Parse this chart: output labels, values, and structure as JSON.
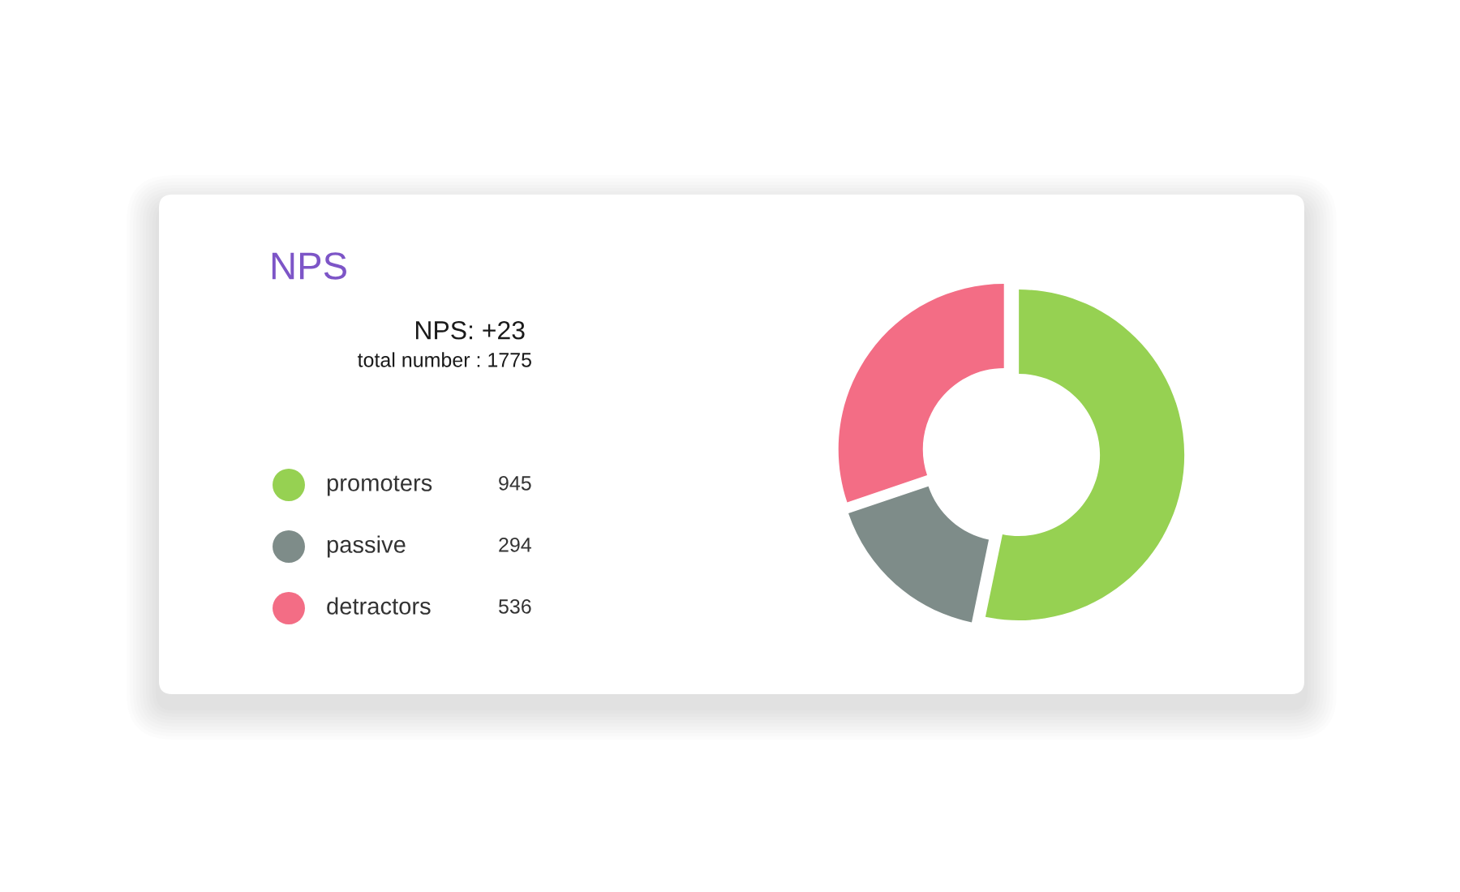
{
  "chart_data": {
    "type": "donut",
    "title": "NPS",
    "annotations": [
      "NPS: +23",
      "total number : 1775"
    ],
    "categories": [
      "promoters",
      "passive",
      "detractors"
    ],
    "values": [
      945,
      294,
      536
    ],
    "colors": [
      "#96d152",
      "#7e8c89",
      "#f36d85"
    ],
    "legend": "left",
    "data_labels": true
  }
}
